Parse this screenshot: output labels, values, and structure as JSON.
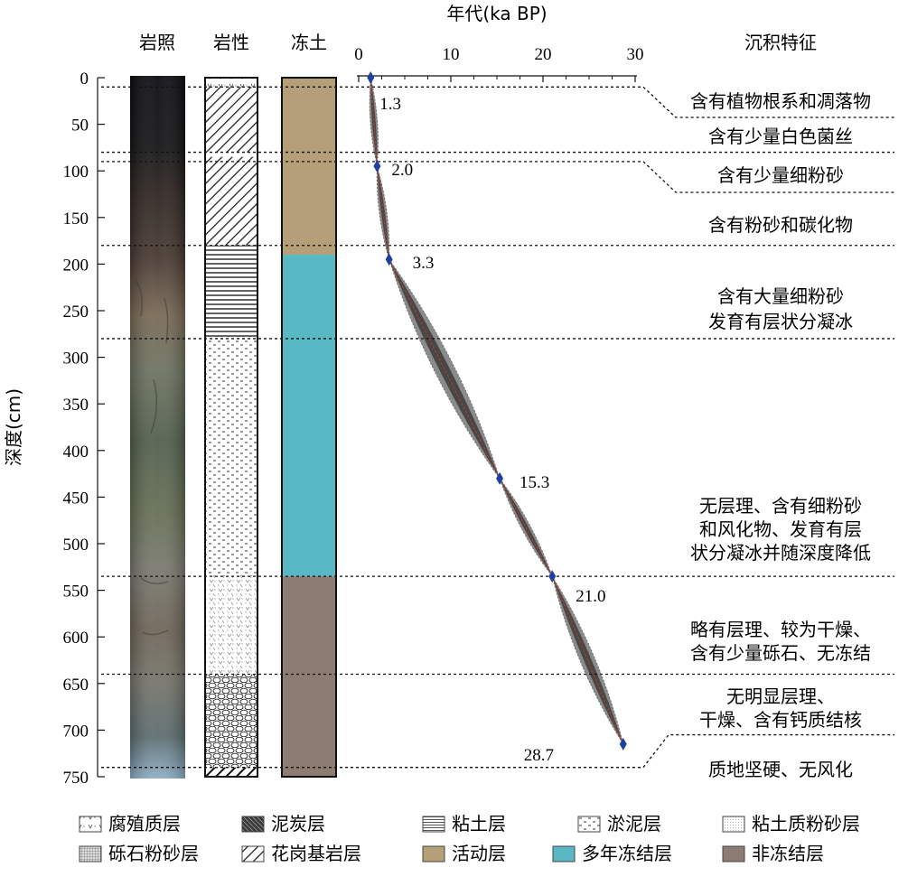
{
  "columns": {
    "photo": "岩照",
    "lithology": "岩性",
    "frozen_soil": "冻土",
    "features": "沉积特征"
  },
  "depth_axis": {
    "label": "深度(cm)",
    "ticks": [
      "0",
      "50",
      "100",
      "150",
      "200",
      "250",
      "300",
      "350",
      "400",
      "450",
      "500",
      "550",
      "600",
      "650",
      "700",
      "750"
    ],
    "range": [
      0,
      750
    ]
  },
  "age_axis": {
    "label": "年代(ka BP)",
    "ticks": [
      "0",
      "10",
      "20",
      "30"
    ],
    "range": [
      0,
      30
    ]
  },
  "chart_data": {
    "type": "line",
    "x_label": "年代(ka BP)",
    "y_label": "深度(cm)",
    "y_inverted": true,
    "xlim": [
      0,
      30
    ],
    "ylim": [
      750,
      0
    ],
    "age_depth_points": [
      {
        "age": 1.3,
        "depth": 0,
        "label": "1.3"
      },
      {
        "age": 2.0,
        "depth": 95,
        "label": "2.0"
      },
      {
        "age": 3.3,
        "depth": 195,
        "label": "3.3"
      },
      {
        "age": 15.3,
        "depth": 430,
        "label": "15.3"
      },
      {
        "age": 21.0,
        "depth": 535,
        "label": "21.0"
      },
      {
        "age": 28.7,
        "depth": 715,
        "label": "28.7"
      }
    ]
  },
  "lithology_units": [
    {
      "name": "腐殖质层",
      "top": 0,
      "bottom": 10
    },
    {
      "name": "花岗基岩层",
      "top": 10,
      "bottom": 80
    },
    {
      "name": "花岗基岩层",
      "top": 85,
      "bottom": 180
    },
    {
      "name": "粘土层",
      "top": 180,
      "bottom": 280
    },
    {
      "name": "淤泥层",
      "top": 280,
      "bottom": 535
    },
    {
      "name": "粘土质粉砂层",
      "top": 535,
      "bottom": 640
    },
    {
      "name": "砾石粉砂层",
      "top": 640,
      "bottom": 740
    },
    {
      "name": "花岗基岩层",
      "top": 740,
      "bottom": 750
    }
  ],
  "frozen_units": [
    {
      "name": "活动层",
      "top": 0,
      "bottom": 190,
      "color": "#b59f79"
    },
    {
      "name": "多年冻结层",
      "top": 190,
      "bottom": 535,
      "color": "#58b8c4"
    },
    {
      "name": "非冻结层",
      "top": 535,
      "bottom": 750,
      "color": "#8c7c72"
    }
  ],
  "features": [
    {
      "lines": [
        "含有植物根系和凋落物"
      ]
    },
    {
      "lines": [
        "含有少量白色菌丝"
      ]
    },
    {
      "lines": [
        "含有少量细粉砂"
      ]
    },
    {
      "lines": [
        "含有粉砂和碳化物"
      ]
    },
    {
      "lines": [
        "含有大量细粉砂",
        "发育有层状分凝冰"
      ]
    },
    {
      "lines": [
        "无层理、含有细粉砂",
        "和风化物、发育有层",
        "状分凝冰并随深度降低"
      ]
    },
    {
      "lines": [
        "略有层理、较为干燥、",
        "含有少量砾石、无冻结"
      ]
    },
    {
      "lines": [
        "无明显层理、",
        "干燥、含有钙质结核"
      ]
    },
    {
      "lines": [
        "质地坚硬、无风化"
      ]
    }
  ],
  "boundary_depths": [
    10,
    80,
    90,
    180,
    280,
    535,
    640,
    740
  ],
  "legend": [
    {
      "name": "腐殖质层",
      "pattern": "humus"
    },
    {
      "name": "泥炭层",
      "pattern": "peat"
    },
    {
      "name": "粘土层",
      "pattern": "clay"
    },
    {
      "name": "淤泥层",
      "pattern": "silt"
    },
    {
      "name": "粘土质粉砂层",
      "pattern": "clayeysilt"
    },
    {
      "name": "砾石粉砂层",
      "pattern": "gravel"
    },
    {
      "name": "花岗基岩层",
      "pattern": "granite"
    },
    {
      "name": "活动层",
      "color": "#b59f79"
    },
    {
      "name": "多年冻结层",
      "color": "#58b8c4"
    },
    {
      "name": "非冻结层",
      "color": "#8c7c72"
    }
  ]
}
